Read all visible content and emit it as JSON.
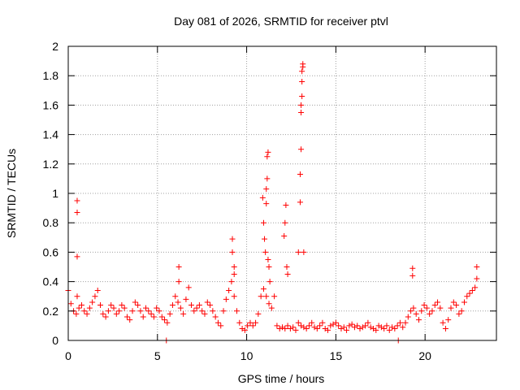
{
  "chart_data": {
    "type": "scatter",
    "title": "Day 081 of 2026, SRMTID for receiver ptvl",
    "xlabel": "GPS time / hours",
    "ylabel": "SRMTID / TECUs",
    "xlim": [
      0,
      24
    ],
    "ylim": [
      0,
      2
    ],
    "xticks": [
      0,
      5,
      10,
      15,
      20
    ],
    "yticks": [
      0,
      0.2,
      0.4,
      0.6,
      0.8,
      1,
      1.2,
      1.4,
      1.6,
      1.8,
      2
    ],
    "xtick_labels": [
      "0",
      "5",
      "10",
      "15",
      "20"
    ],
    "ytick_labels": [
      "0",
      "0.2",
      "0.4",
      "0.6",
      "0.8",
      "1",
      "1.2",
      "1.4",
      "1.6",
      "1.8",
      "2"
    ],
    "grid": true,
    "marker": "+",
    "series": [
      {
        "name": "SRMTID",
        "color": "#ff0000",
        "x": [
          0.0,
          0.15,
          0.3,
          0.45,
          0.6,
          0.75,
          0.9,
          1.05,
          1.2,
          1.35,
          1.5,
          1.65,
          1.8,
          1.95,
          2.1,
          2.25,
          2.4,
          2.55,
          2.7,
          2.85,
          3.0,
          3.15,
          3.3,
          3.45,
          3.6,
          3.75,
          3.9,
          4.05,
          4.2,
          4.35,
          4.5,
          4.65,
          4.8,
          4.95,
          5.1,
          5.25,
          5.4,
          5.55,
          5.7,
          5.85,
          6.0,
          6.15,
          6.3,
          6.45,
          6.6,
          6.75,
          6.9,
          7.05,
          7.2,
          7.35,
          7.5,
          7.65,
          7.8,
          7.95,
          8.1,
          8.25,
          8.4,
          8.55,
          8.7,
          8.85,
          9.0,
          9.15,
          9.3,
          9.45,
          9.6,
          9.75,
          9.9,
          10.05,
          10.2,
          10.35,
          10.5,
          10.65,
          10.8,
          10.95,
          11.1,
          11.25,
          11.4,
          11.55,
          11.7,
          11.85,
          12.0,
          12.15,
          12.3,
          12.45,
          12.6,
          12.75,
          12.9,
          13.05,
          13.2,
          13.35,
          13.5,
          13.65,
          13.8,
          13.95,
          14.1,
          14.25,
          14.4,
          14.55,
          14.7,
          14.85,
          15.0,
          15.15,
          15.3,
          15.45,
          15.6,
          15.75,
          15.9,
          16.05,
          16.2,
          16.35,
          16.5,
          16.65,
          16.8,
          16.95,
          17.1,
          17.25,
          17.4,
          17.55,
          17.7,
          17.85,
          18.0,
          18.15,
          18.3,
          18.45,
          18.6,
          18.75,
          18.9,
          19.05,
          19.2,
          19.35,
          19.5,
          19.65,
          19.8,
          19.95,
          20.1,
          20.25,
          20.4,
          20.55,
          20.7,
          20.85,
          21.0,
          21.15,
          21.3,
          21.45,
          21.6,
          21.75,
          21.9,
          22.05,
          22.2,
          22.35,
          22.5,
          22.65,
          22.8,
          0.5,
          0.5,
          0.5,
          0.5,
          5.5,
          6.2,
          6.2,
          9.2,
          9.2,
          9.3,
          9.3,
          10.9,
          10.95,
          11.0,
          11.05,
          11.1,
          11.1,
          11.15,
          11.15,
          11.2,
          11.2,
          11.25,
          11.3,
          12.1,
          12.15,
          12.2,
          12.25,
          12.3,
          12.9,
          13.0,
          13.0,
          13.05,
          13.05,
          13.05,
          13.1,
          13.1,
          13.1,
          13.15,
          13.15,
          13.2,
          18.5,
          19.3,
          19.3,
          22.9,
          22.9
        ],
        "y": [
          0.34,
          0.25,
          0.2,
          0.18,
          0.22,
          0.24,
          0.2,
          0.18,
          0.22,
          0.26,
          0.3,
          0.34,
          0.24,
          0.18,
          0.16,
          0.2,
          0.24,
          0.22,
          0.18,
          0.2,
          0.24,
          0.22,
          0.16,
          0.14,
          0.2,
          0.26,
          0.24,
          0.2,
          0.16,
          0.22,
          0.2,
          0.18,
          0.16,
          0.22,
          0.2,
          0.16,
          0.14,
          0.12,
          0.18,
          0.24,
          0.3,
          0.26,
          0.22,
          0.18,
          0.28,
          0.36,
          0.24,
          0.2,
          0.22,
          0.24,
          0.2,
          0.18,
          0.26,
          0.24,
          0.2,
          0.16,
          0.12,
          0.1,
          0.2,
          0.28,
          0.34,
          0.4,
          0.3,
          0.2,
          0.12,
          0.08,
          0.07,
          0.1,
          0.12,
          0.1,
          0.12,
          0.18,
          0.3,
          0.35,
          0.3,
          0.25,
          0.22,
          0.3,
          0.1,
          0.08,
          0.09,
          0.08,
          0.1,
          0.08,
          0.09,
          0.07,
          0.12,
          0.1,
          0.09,
          0.08,
          0.1,
          0.12,
          0.09,
          0.08,
          0.1,
          0.12,
          0.08,
          0.07,
          0.1,
          0.11,
          0.12,
          0.1,
          0.08,
          0.09,
          0.07,
          0.1,
          0.11,
          0.09,
          0.1,
          0.08,
          0.09,
          0.1,
          0.12,
          0.09,
          0.08,
          0.07,
          0.1,
          0.09,
          0.08,
          0.1,
          0.07,
          0.09,
          0.08,
          0.1,
          0.12,
          0.09,
          0.12,
          0.16,
          0.2,
          0.22,
          0.18,
          0.14,
          0.2,
          0.24,
          0.22,
          0.18,
          0.2,
          0.24,
          0.26,
          0.22,
          0.12,
          0.08,
          0.14,
          0.22,
          0.26,
          0.24,
          0.18,
          0.2,
          0.26,
          0.3,
          0.32,
          0.34,
          0.36,
          0.95,
          0.87,
          0.57,
          0.3,
          0.0,
          0.5,
          0.4,
          0.69,
          0.6,
          0.5,
          0.45,
          0.97,
          0.8,
          0.69,
          0.6,
          0.93,
          1.03,
          1.1,
          1.25,
          1.28,
          0.55,
          0.5,
          0.4,
          0.71,
          0.8,
          0.92,
          0.5,
          0.45,
          0.6,
          1.13,
          0.94,
          1.3,
          1.55,
          1.6,
          1.66,
          1.76,
          1.83,
          1.86,
          1.88,
          0.6,
          0.0,
          0.49,
          0.44,
          0.5,
          0.42
        ]
      }
    ]
  }
}
